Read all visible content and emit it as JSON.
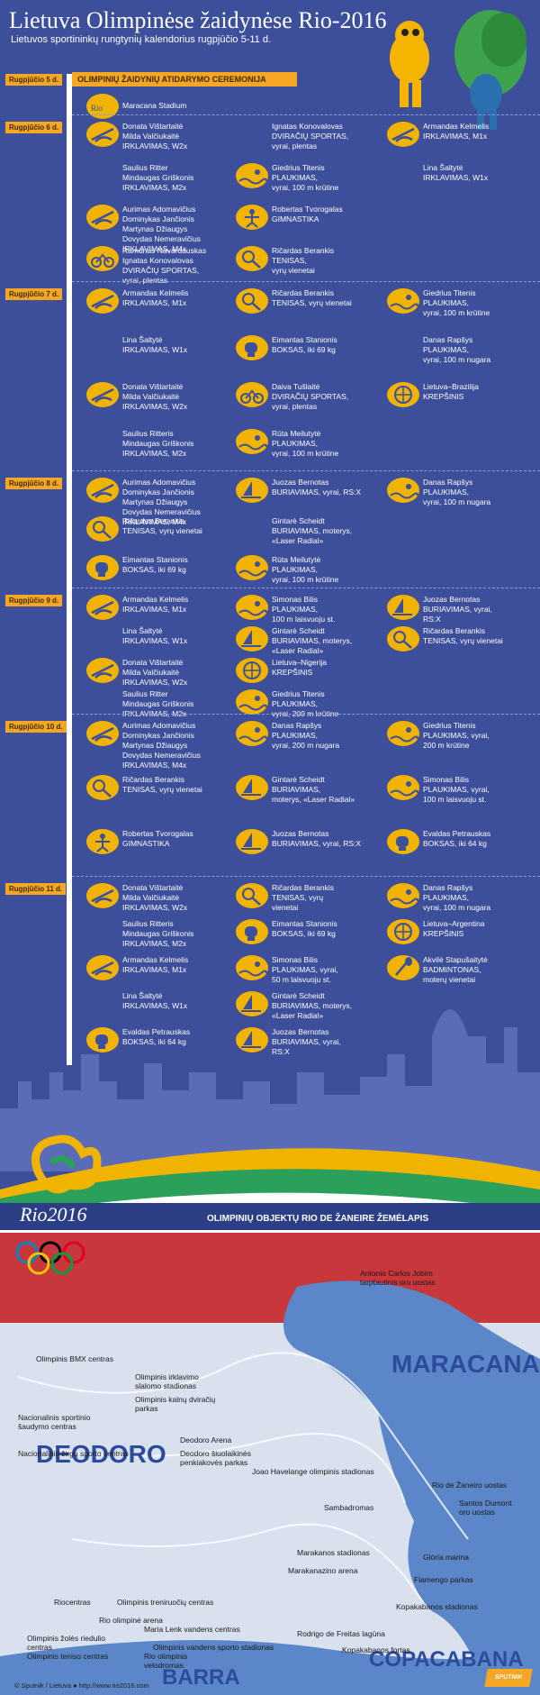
{
  "header": {
    "title": "Lietuva Olimpinėse žaidynėse Rio-2016",
    "subtitle": "Lietuvos sportininkų rungtynių kalendorius rugpjūčio 5-11 d."
  },
  "opening": {
    "day": "Rugpjūčio 5 d.",
    "label": "OLIMPINIŲ ŽAIDYNIŲ ATIDARYMO CEREMONIJA",
    "venue": "Maracana Stadium"
  },
  "days": [
    {
      "label": "Rugpjūčio 6 d.",
      "events": [
        {
          "icon": "rowing-icon",
          "text": "Donata Vištartaitė\nMilda Valčiukaitė\nIRKLAVIMAS, W2x"
        },
        {
          "icon": "",
          "text": "Saulius Ritter\nMindaugas Griškonis\nIRKLAVIMAS, M2x"
        },
        {
          "icon": "rowing-icon",
          "text": "Aurimas Adomavičius\nDominykas Jančionis\nMartynas Džiaugys\nDovydas Nemeravičius\nIRKLAVIMAS, M4x"
        },
        {
          "icon": "cycling-icon",
          "text": "Ramūnas Navardauskas\nIgnatas Konovalovas\nDVIRAČIŲ SPORTAS,\nvyrai, plentas"
        },
        {
          "icon": "",
          "text": "Ignatas Konovalovas\nDVIRAČIŲ SPORTAS,\nvyrai, plentas"
        },
        {
          "icon": "swimming-icon",
          "text": "Giedrius Titenis\nPLAUKIMAS,\nvyrai, 100 m krūtine"
        },
        {
          "icon": "gymnastics-icon",
          "text": "Robertas Tvorogalas\nGIMNASTIKA"
        },
        {
          "icon": "tennis-icon",
          "text": "Ričardas Berankis\nTENISAS,\nvyrų vienetai"
        },
        {
          "icon": "rowing-icon",
          "text": "Armandas Kelmelis\nIRKLAVIMAS, M1x"
        },
        {
          "icon": "",
          "text": "Lina Šaltytė\nIRKLAVIMAS, W1x"
        }
      ]
    },
    {
      "label": "Rugpjūčio 7 d.",
      "events": [
        {
          "icon": "rowing-icon",
          "text": "Armandas Kelmelis\nIRKLAVIMAS, M1x"
        },
        {
          "icon": "",
          "text": "Lina Šaltytė\nIRKLAVIMAS, W1x"
        },
        {
          "icon": "rowing-icon",
          "text": "Donata Vištartaitė\nMilda Valčiukaitė\nIRKLAVIMAS, W2x"
        },
        {
          "icon": "",
          "text": "Saulius Ritteris\nMindaugas Griškonis\nIRKLAVIMAS, M2x"
        },
        {
          "icon": "tennis-icon",
          "text": "Ričardas Berankis\nTENISAS, vyrų vienetai"
        },
        {
          "icon": "boxing-icon",
          "text": "Eimantas Stanionis\nBOKSAS, iki 69 kg"
        },
        {
          "icon": "cycling-icon",
          "text": "Daiva Tušlaitė\nDVIRAČIŲ SPORTAS,\nvyrai, plentas"
        },
        {
          "icon": "swimming-icon",
          "text": "Rūta Meilutytė\nPLAUKIMAS,\nvyrai, 100 m krūtine"
        },
        {
          "icon": "swimming-icon",
          "text": "Giedrius Titenis\nPLAUKIMAS,\nvyrai, 100 m krūtine"
        },
        {
          "icon": "",
          "text": "Danas Rapšys\nPLAUKIMAS,\nvyrai, 100 m nugara"
        },
        {
          "icon": "basketball-icon",
          "text": "Lietuva–Brazilija\nKREPŠINIS"
        }
      ]
    },
    {
      "label": "Rugpjūčio 8 d.",
      "events": [
        {
          "icon": "rowing-icon",
          "text": "Aurimas Adomavičius\nDominykas Jančionis\nMartynas Džiaugys\nDovydas Nemeravičius\nIRKLAVIMAS, M4x"
        },
        {
          "icon": "tennis-icon",
          "text": "Ričardas Berankis\nTENISAS, vyrų vienetai"
        },
        {
          "icon": "boxing-icon",
          "text": "Eimantas Stanionis\nBOKSAS, iki 69 kg"
        },
        {
          "icon": "sailing-icon",
          "text": "Juozas Bernotas\nBURIAVIMAS, vyrai, RS:X"
        },
        {
          "icon": "",
          "text": "Gintarė Scheidt\nBURIAVIMAS, moterys,\n«Laser Radial»"
        },
        {
          "icon": "swimming-icon",
          "text": "Rūta Meilutytė\nPLAUKIMAS,\nvyrai, 100 m krūtine"
        },
        {
          "icon": "swimming-icon",
          "text": "Danas Rapšys\nPLAUKIMAS,\nvyrai, 100 m nugara"
        }
      ]
    },
    {
      "label": "Rugpjūčio 9 d.",
      "events": [
        {
          "icon": "rowing-icon",
          "text": "Armandas Kelmelis\nIRKLAVIMAS, M1x"
        },
        {
          "icon": "",
          "text": "Lina Šaltytė\nIRKLAVIMAS, W1x"
        },
        {
          "icon": "rowing-icon",
          "text": "Donata Vištartaitė\nMilda Valčiukaitė\nIRKLAVIMAS, W2x"
        },
        {
          "icon": "",
          "text": "Saulius Ritter\nMindaugas Griškonis\nIRKLAVIMAS, M2x"
        },
        {
          "icon": "swimming-icon",
          "text": "Simonas Bilis\nPLAUKIMAS,\n100 m laisvuoju st."
        },
        {
          "icon": "sailing-icon",
          "text": "Gintarė Scheidt\nBURIAVIMAS, moterys,\n«Laser Radial»"
        },
        {
          "icon": "basketball-icon",
          "text": "Lietuva–Nigerija\nKREPŠINIS"
        },
        {
          "icon": "swimming-icon",
          "text": "Giedrius Titenis\nPLAUKIMAS,\nvyrai, 200 m krūtine"
        },
        {
          "icon": "sailing-icon",
          "text": "Juozas Bernotas\nBURIAVIMAS, vyrai,\nRS:X"
        },
        {
          "icon": "tennis-icon",
          "text": "Ričardas Berankis\nTENISAS, vyrų vienetai"
        }
      ]
    },
    {
      "label": "Rugpjūčio 10 d.",
      "events": [
        {
          "icon": "rowing-icon",
          "text": "Aurimas Adomavičius\nDominykas Jančionis\nMartynas Džiaugys\nDovydas Nemeravičius\nIRKLAVIMAS, M4x"
        },
        {
          "icon": "tennis-icon",
          "text": "Ričardas Berankis\nTENISAS, vyrų vienetai"
        },
        {
          "icon": "gymnastics-icon",
          "text": "Robertas Tvorogalas\nGIMNASTIKA"
        },
        {
          "icon": "swimming-icon",
          "text": "Danas Rapšys\nPLAUKIMAS,\nvyrai, 200 m nugara"
        },
        {
          "icon": "sailing-icon",
          "text": "Gintarė Scheidt\nBURIAVIMAS,\nmoterys, «Laser Radial»"
        },
        {
          "icon": "sailing-icon",
          "text": "Juozas Bernotas\nBURIAVIMAS, vyrai, RS:X"
        },
        {
          "icon": "swimming-icon",
          "text": "Giedrius Titenis\nPLAUKIMAS, vyrai,\n200 m krūtine"
        },
        {
          "icon": "swimming-icon",
          "text": "Simonas Bilis\nPLAUKIMAS, vyrai,\n100 m laisvuoju st."
        },
        {
          "icon": "boxing-icon",
          "text": "Evaldas Petrauskas\nBOKSAS, iki 64 kg"
        }
      ]
    },
    {
      "label": "Rugpjūčio 11 d.",
      "events": [
        {
          "icon": "rowing-icon",
          "text": "Donata Vištartaitė\nMilda Valčiukaitė\nIRKLAVIMAS, W2x"
        },
        {
          "icon": "",
          "text": "Saulius Ritteris\nMindaugas Griškonis\nIRKLAVIMAS, M2x"
        },
        {
          "icon": "rowing-icon",
          "text": "Armandas Kelmelis\nIRKLAVIMAS, M1x"
        },
        {
          "icon": "",
          "text": "Lina Šaltytė\nIRKLAVIMAS, W1x"
        },
        {
          "icon": "boxing-icon",
          "text": "Evaldas Petrauskas\nBOKSAS, iki 64 kg"
        },
        {
          "icon": "tennis-icon",
          "text": "Ričardas Berankis\nTENISAS, vyrų\nvienetai"
        },
        {
          "icon": "boxing-icon",
          "text": "Eimantas Stanionis\nBOKSAS, iki 69 kg"
        },
        {
          "icon": "swimming-icon",
          "text": "Simonas Bilis\nPLAUKIMAS, vyrai,\n50 m laisvuoju st."
        },
        {
          "icon": "sailing-icon",
          "text": "Gintarė Scheidt\nBURIAVIMAS, moterys,\n«Laser Radial»"
        },
        {
          "icon": "sailing-icon",
          "text": "Juozas Bernotas\nBURIAVIMAS, vyrai,\nRS:X"
        },
        {
          "icon": "swimming-icon",
          "text": "Danas Rapšys\nPLAUKIMAS,\nvyrai, 100 m nugara"
        },
        {
          "icon": "basketball-icon",
          "text": "Lietuva–Argentina\nKREPŠINIS"
        },
        {
          "icon": "badminton-icon",
          "text": "Akvilė Stapušaitytė\nBADMINTONAS,\nmoterų vienetai"
        }
      ]
    }
  ],
  "map": {
    "logo": "Rio2016",
    "title": "OLIMPINIŲ OBJEKTŲ RIO DE ŽANEIRE ŽEMĖLAPIS",
    "regions": [
      "MARACANA",
      "DEODORO",
      "COPACABANA",
      "BARRA"
    ],
    "labels": [
      "Antonio Carlos Jobim\ntarptautinis oro uostas",
      "Olimpinis BMX centras",
      "Olimpinis irklavimo\nslalomo stadionas",
      "Olimpinis kalnų dviračių\nparkas",
      "Nacionalinis sportinio\nšaudymo centras",
      "Deodoro Arena",
      "Deodoro šiuolaikinės\npenkiakovės parkas",
      "Nacionalinis žirgų sporto centras",
      "Joao Havelange olimpinis stadionas",
      "Rio de Žaneiro uostas",
      "Sambadromas",
      "Santos Dumont\noro uostas",
      "Marakanos stadionas",
      "Glória marina",
      "Marakanazino arena",
      "Flamengo parkas",
      "Riocentras",
      "Olimpinis treniruočių centras",
      "Kopakabanos stadionas",
      "Rio olimpinė arena",
      "Maria Lenk vandens centras",
      "Rodrigo de Freitas lagūna",
      "Olimpinis žolės riedulio\ncentras",
      "Olimpinis vandens sporto stadionas",
      "Olimpinis teniso centras",
      "Rio olimpinis\nvelodromas",
      "Kopakabanos fortas"
    ]
  },
  "footer": "© Sputnik / Lietuva  ● http://www.rio2016.com",
  "brand": "SPUTNIK",
  "colors": {
    "bg": "#3d4f9b",
    "accent": "#f5a623",
    "icon": "#f0b400",
    "name": "#f6c343"
  }
}
